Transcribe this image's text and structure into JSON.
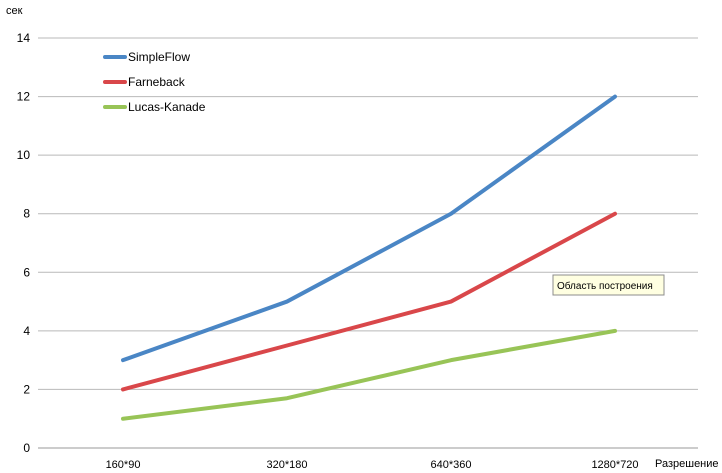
{
  "chart_data": {
    "type": "line",
    "title": "",
    "xlabel": "Разрешение",
    "ylabel": "сек",
    "categories": [
      "160*90",
      "320*180",
      "640*360",
      "1280*720"
    ],
    "ylim": [
      0,
      14
    ],
    "yticks": [
      0,
      2,
      4,
      6,
      8,
      10,
      12,
      14
    ],
    "grid": true,
    "legend_position": "top-left",
    "series": [
      {
        "name": "SimpleFlow",
        "color": "#4a86c5",
        "values": [
          3,
          5,
          8,
          12
        ]
      },
      {
        "name": "Farneback",
        "color": "#d9474a",
        "values": [
          2,
          3.5,
          5,
          8
        ]
      },
      {
        "name": "Lucas-Kanade",
        "color": "#98c457",
        "values": [
          1,
          1.7,
          3,
          4
        ]
      }
    ]
  },
  "tooltip": {
    "text": "Область построения"
  }
}
